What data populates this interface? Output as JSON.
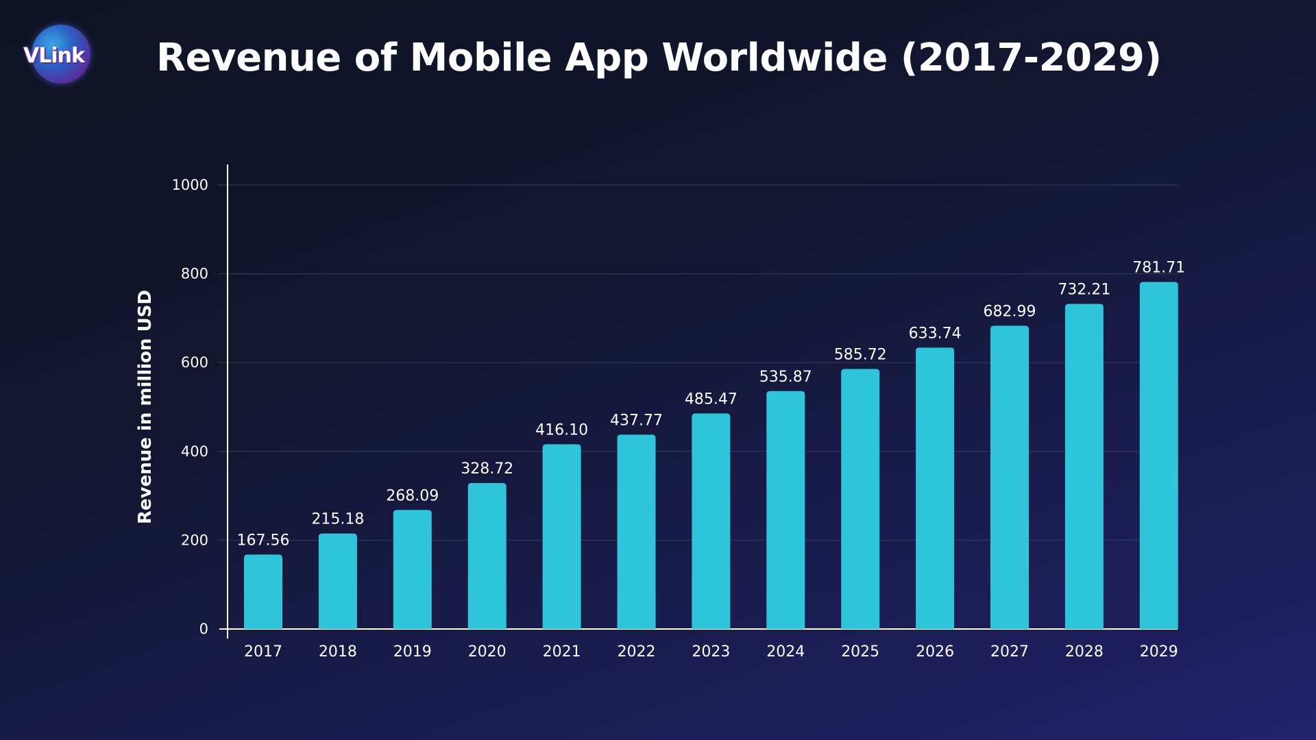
{
  "logo": {
    "text": "VLink"
  },
  "chart_data": {
    "type": "bar",
    "title": "Revenue of Mobile App Worldwide (2017-2029)",
    "xlabel": "",
    "ylabel": "Revenue in million USD",
    "ylim": [
      0,
      1000
    ],
    "yticks": [
      0,
      200,
      400,
      600,
      800,
      1000
    ],
    "categories": [
      "2017",
      "2018",
      "2019",
      "2020",
      "2021",
      "2022",
      "2023",
      "2024",
      "2025",
      "2026",
      "2027",
      "2028",
      "2029"
    ],
    "values": [
      167.56,
      215.18,
      268.09,
      328.72,
      416.1,
      437.77,
      485.47,
      535.87,
      585.72,
      633.74,
      682.99,
      732.21,
      781.71
    ],
    "value_labels": [
      "167.56",
      "215.18",
      "268.09",
      "328.72",
      "416.10",
      "437.77",
      "485.47",
      "535.87",
      "585.72",
      "633.74",
      "682.99",
      "732.21",
      "781.71"
    ],
    "grid": true,
    "colors": {
      "bar": "#2ec4da",
      "grid": "#3a3f5a",
      "axis": "#ffffff"
    }
  }
}
